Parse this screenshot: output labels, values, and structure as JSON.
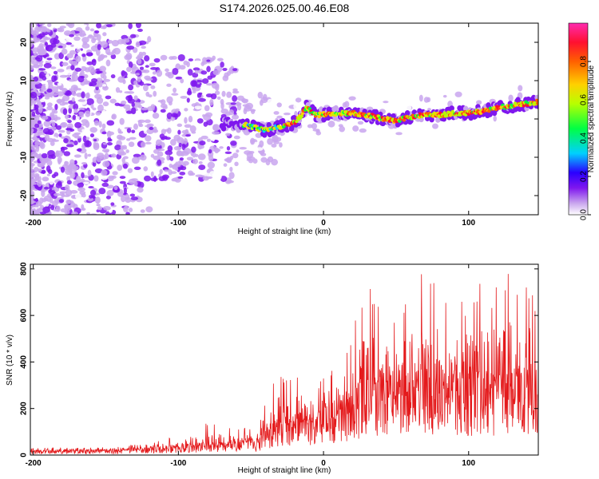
{
  "title": "S174.2026.025.00.46.E08",
  "chart_data": [
    {
      "type": "heatmap",
      "name": "spectrogram",
      "xlabel": "Height of straight line (km)",
      "ylabel": "Frequency (Hz)",
      "xlim": [
        -202,
        148
      ],
      "ylim": [
        -25,
        25
      ],
      "xticks": [
        -200,
        -100,
        0,
        100
      ],
      "yticks": [
        -20,
        -10,
        0,
        10,
        20
      ],
      "xtick_labels": [
        "-200",
        "-100",
        "0",
        "100"
      ],
      "ytick_labels": [
        "-20",
        "-10",
        "0",
        "10",
        "20"
      ],
      "ridge": {
        "description": "Dominant signal ridge (frequency vs height)",
        "x": [
          -55,
          -45,
          -40,
          -30,
          -20,
          -15,
          -12,
          -5,
          0,
          10,
          20,
          30,
          40,
          50,
          60,
          70,
          80,
          90,
          100,
          110,
          120,
          130,
          140,
          148
        ],
        "y": [
          -1.5,
          -2.5,
          -3,
          -2,
          -1,
          1,
          3,
          1,
          1.2,
          1.5,
          1.5,
          1.0,
          0.2,
          -0.5,
          0.5,
          1.2,
          1.0,
          1.5,
          1.5,
          2.0,
          3.0,
          3.5,
          4.0,
          4.5
        ]
      },
      "colorbar": {
        "label": "Normalized spectral amplitude",
        "range": [
          0,
          1
        ],
        "ticks": [
          0.0,
          0.2,
          0.4,
          0.6,
          0.8
        ],
        "tick_labels": [
          "0.0",
          "0.2",
          "0.4",
          "0.6",
          "0.8"
        ],
        "colormap": [
          "#ffffff",
          "#c9a6ee",
          "#7f17ee",
          "#2a00ff",
          "#00d0ff",
          "#00ff44",
          "#b8ff00",
          "#ffd000",
          "#ff6000",
          "#ff1030",
          "#ff2bb0"
        ]
      }
    },
    {
      "type": "line",
      "name": "snr",
      "xlabel": "Height of straight line (km)",
      "ylabel": "SNR (10 * v/v)",
      "xlim": [
        -202,
        148
      ],
      "ylim": [
        0,
        820
      ],
      "xticks": [
        -200,
        -100,
        0,
        100
      ],
      "yticks": [
        0,
        200,
        400,
        600,
        800
      ],
      "xtick_labels": [
        "-200",
        "-100",
        "0",
        "100"
      ],
      "ytick_labels": [
        "0",
        "200",
        "400",
        "600",
        "800"
      ],
      "color": "#e41a1c",
      "envelope": {
        "description": "Approximate peak envelope of the SNR trace",
        "x": [
          -202,
          -150,
          -120,
          -100,
          -80,
          -60,
          -45,
          -35,
          -25,
          -15,
          -5,
          0,
          10,
          20,
          25,
          30,
          40,
          50,
          60,
          65,
          70,
          80,
          90,
          100,
          110,
          120,
          130,
          140,
          148
        ],
        "y": [
          30,
          35,
          50,
          90,
          140,
          110,
          130,
          360,
          330,
          350,
          300,
          350,
          430,
          500,
          710,
          720,
          700,
          560,
          720,
          810,
          780,
          740,
          660,
          700,
          760,
          730,
          815,
          770,
          700
        ]
      },
      "baseline": {
        "description": "Approximate median level of the SNR trace",
        "x": [
          -202,
          -150,
          -120,
          -100,
          -80,
          -60,
          -45,
          -35,
          -20,
          0,
          20,
          40,
          60,
          80,
          100,
          120,
          148
        ],
        "y": [
          15,
          18,
          22,
          30,
          40,
          40,
          50,
          110,
          120,
          140,
          200,
          250,
          270,
          280,
          270,
          270,
          250
        ]
      }
    }
  ]
}
